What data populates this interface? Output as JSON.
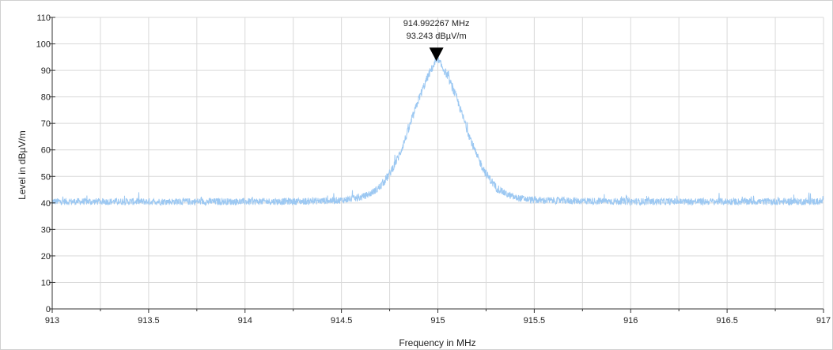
{
  "chart_data": {
    "type": "line",
    "title": "",
    "xlabel": "Frequency in MHz",
    "ylabel": "Level in dBµV/m",
    "xlim": [
      913,
      917
    ],
    "ylim": [
      0,
      110
    ],
    "x_ticks": [
      913,
      913.5,
      914,
      914.5,
      915,
      915.5,
      916,
      916.5,
      917
    ],
    "x_tick_labels": [
      "913",
      "913.5",
      "914",
      "914.5",
      "915",
      "915.5",
      "916",
      "916.5",
      "917"
    ],
    "y_ticks": [
      0,
      10,
      20,
      30,
      40,
      50,
      60,
      70,
      80,
      90,
      100,
      110
    ],
    "y_tick_labels": [
      "0",
      "10",
      "20",
      "30",
      "40",
      "50",
      "60",
      "70",
      "80",
      "90",
      "100",
      "110"
    ],
    "grid": true,
    "series": [
      {
        "color": "#9cc8f2",
        "x": [
          913.0,
          913.5,
          914.0,
          914.3,
          914.5,
          914.6,
          914.65,
          914.7,
          914.75,
          914.8,
          914.85,
          914.9,
          914.95,
          914.975,
          914.992267,
          915.01,
          915.05,
          915.1,
          915.15,
          915.2,
          915.25,
          915.3,
          915.35,
          915.4,
          915.5,
          916.0,
          916.5,
          917.0
        ],
        "y": [
          40.5,
          40.5,
          40.5,
          40.6,
          41.0,
          42.0,
          43.5,
          46.0,
          51.0,
          58.0,
          68.0,
          79.0,
          88.0,
          91.5,
          93.243,
          92.8,
          88.0,
          79.0,
          68.0,
          58.0,
          51.0,
          46.0,
          43.5,
          42.0,
          41.0,
          40.5,
          40.5,
          40.5
        ]
      }
    ],
    "marker": {
      "x": 914.992267,
      "y": 93.243,
      "frequency_label": "914.992267 MHz",
      "level_label": "93.243 dBµV/m"
    }
  }
}
